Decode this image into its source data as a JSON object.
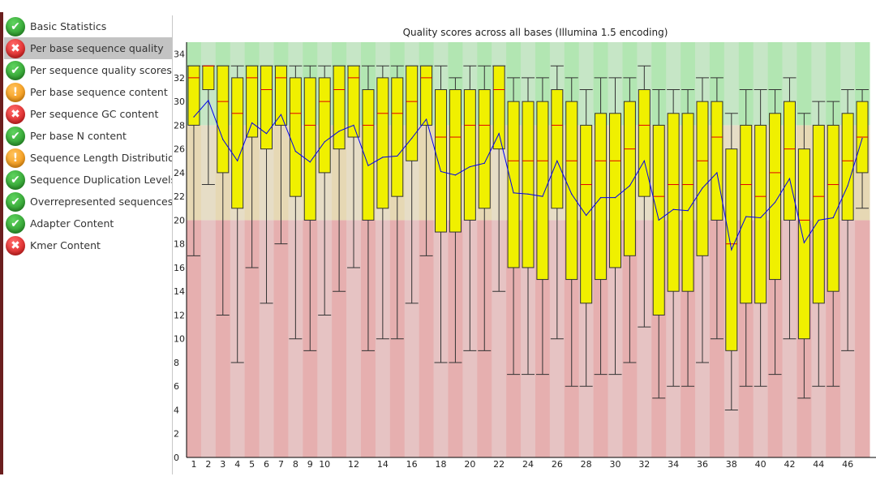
{
  "sidebar": {
    "items": [
      {
        "label": "Basic Statistics",
        "status": "pass",
        "icon": "check-icon"
      },
      {
        "label": "Per base sequence quality",
        "status": "fail",
        "icon": "cross-icon",
        "selected": true
      },
      {
        "label": "Per sequence quality scores",
        "status": "pass",
        "icon": "check-icon"
      },
      {
        "label": "Per base sequence content",
        "status": "warn",
        "icon": "exclamation-icon"
      },
      {
        "label": "Per sequence GC content",
        "status": "fail",
        "icon": "cross-icon"
      },
      {
        "label": "Per base N content",
        "status": "pass",
        "icon": "check-icon"
      },
      {
        "label": "Sequence Length Distribution",
        "status": "warn",
        "icon": "exclamation-icon"
      },
      {
        "label": "Sequence Duplication Levels",
        "status": "pass",
        "icon": "check-icon"
      },
      {
        "label": "Overrepresented sequences",
        "status": "pass",
        "icon": "check-icon"
      },
      {
        "label": "Adapter Content",
        "status": "pass",
        "icon": "check-icon"
      },
      {
        "label": "Kmer Content",
        "status": "fail",
        "icon": "cross-icon"
      }
    ]
  },
  "chart_data": {
    "type": "boxplot",
    "title": "Quality scores across all bases (Illumina 1.5 encoding)",
    "xlabel": "",
    "ylabel": "",
    "ylim": [
      0,
      35
    ],
    "yticks": [
      0,
      2,
      4,
      6,
      8,
      10,
      12,
      14,
      16,
      18,
      20,
      22,
      24,
      26,
      28,
      30,
      32,
      34
    ],
    "xtick_labels": [
      "1",
      "2",
      "3",
      "4",
      "5",
      "6",
      "7",
      "8",
      "9",
      "10",
      "12",
      "14",
      "16",
      "18",
      "20",
      "22",
      "24",
      "26",
      "28",
      "30",
      "32",
      "34",
      "36",
      "38",
      "40",
      "42",
      "44",
      "46"
    ],
    "zones": [
      {
        "from": 0,
        "to": 20,
        "color": "#e6afaf",
        "alt_color": "#e6c3c3"
      },
      {
        "from": 20,
        "to": 28,
        "color": "#e6d8b4",
        "alt_color": "#e6ddc6"
      },
      {
        "from": 28,
        "to": 35,
        "color": "#b2e6b2",
        "alt_color": "#c6e6c6"
      }
    ],
    "colors": {
      "box": "#f0f000",
      "median": "#e00000",
      "mean": "#0000ee"
    },
    "positions": [
      1,
      2,
      3,
      4,
      5,
      6,
      7,
      8,
      9,
      10,
      11,
      12,
      13,
      14,
      15,
      16,
      17,
      18,
      19,
      20,
      21,
      22,
      23,
      24,
      25,
      26,
      27,
      28,
      29,
      30,
      31,
      32,
      33,
      34,
      35,
      36,
      37,
      38,
      39,
      40,
      41,
      42,
      43,
      44,
      45,
      46,
      47
    ],
    "lower_whisker": [
      17,
      23,
      12,
      8,
      16,
      13,
      18,
      10,
      9,
      12,
      14,
      16,
      9,
      10,
      10,
      13,
      17,
      8,
      8,
      9,
      9,
      14,
      7,
      7,
      7,
      10,
      6,
      6,
      7,
      7,
      8,
      11,
      5,
      6,
      6,
      8,
      10,
      4,
      6,
      6,
      7,
      10,
      5,
      6,
      6,
      9,
      21
    ],
    "q1": [
      28,
      31,
      24,
      21,
      27,
      26,
      28,
      22,
      20,
      24,
      26,
      27,
      20,
      21,
      22,
      25,
      28,
      19,
      19,
      20,
      21,
      26,
      16,
      16,
      15,
      21,
      15,
      13,
      15,
      16,
      17,
      22,
      12,
      14,
      14,
      17,
      20,
      9,
      13,
      13,
      15,
      20,
      10,
      13,
      14,
      20,
      24
    ],
    "median": [
      32,
      33,
      30,
      29,
      32,
      31,
      32,
      29,
      28,
      30,
      31,
      32,
      28,
      29,
      29,
      30,
      32,
      27,
      27,
      28,
      28,
      31,
      25,
      25,
      25,
      28,
      25,
      23,
      25,
      25,
      26,
      28,
      22,
      23,
      23,
      25,
      27,
      18,
      23,
      22,
      24,
      26,
      20,
      22,
      23,
      25,
      27
    ],
    "q3": [
      33,
      33,
      33,
      32,
      33,
      33,
      33,
      32,
      32,
      32,
      33,
      33,
      31,
      32,
      32,
      33,
      33,
      31,
      31,
      31,
      31,
      33,
      30,
      30,
      30,
      31,
      30,
      28,
      29,
      29,
      30,
      31,
      28,
      29,
      29,
      30,
      30,
      26,
      28,
      28,
      29,
      30,
      26,
      28,
      28,
      29,
      30
    ],
    "upper_whisker": [
      33,
      33,
      33,
      33,
      33,
      33,
      33,
      33,
      33,
      33,
      33,
      33,
      33,
      33,
      33,
      33,
      33,
      33,
      32,
      33,
      33,
      33,
      32,
      32,
      32,
      33,
      32,
      31,
      32,
      32,
      32,
      33,
      31,
      31,
      31,
      32,
      32,
      29,
      31,
      31,
      31,
      32,
      29,
      30,
      30,
      31,
      31
    ],
    "mean": [
      28.7,
      30.1,
      26.8,
      25.0,
      28.2,
      27.3,
      28.9,
      25.8,
      24.9,
      26.6,
      27.5,
      28.0,
      24.6,
      25.3,
      25.4,
      26.9,
      28.5,
      24.1,
      23.8,
      24.5,
      24.8,
      27.3,
      22.3,
      22.2,
      22.0,
      25.0,
      22.2,
      20.4,
      21.9,
      21.9,
      22.9,
      25.0,
      20.0,
      20.9,
      20.8,
      22.7,
      24.0,
      17.5,
      20.3,
      20.2,
      21.5,
      23.5,
      18.1,
      20.0,
      20.2,
      22.9,
      26.9
    ]
  }
}
